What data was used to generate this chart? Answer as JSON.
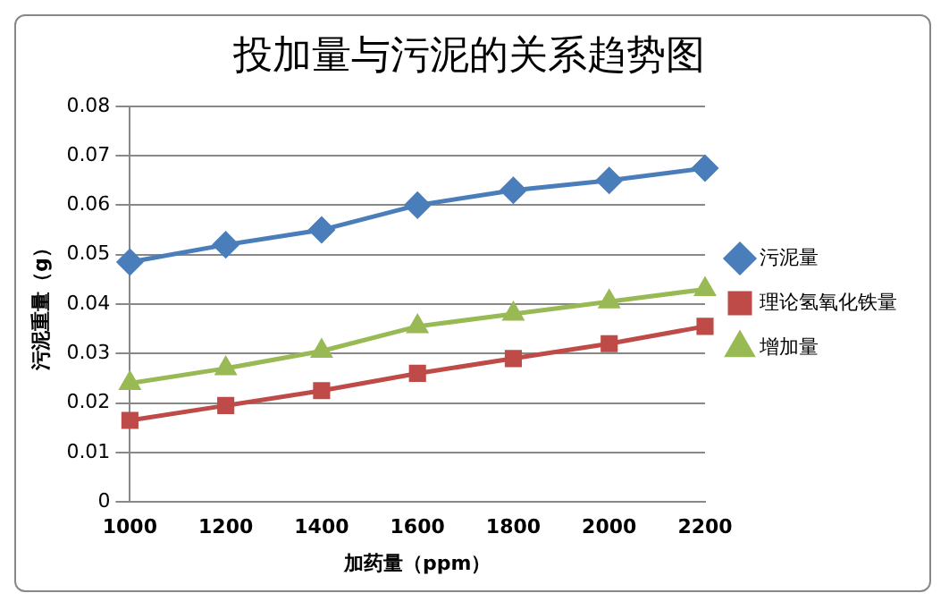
{
  "chart_data": {
    "type": "line",
    "title": "投加量与污泥的关系趋势图",
    "xlabel": "加药量（ppm）",
    "ylabel": "污泥重量（g）",
    "categories": [
      "1000",
      "1200",
      "1400",
      "1600",
      "1800",
      "2000",
      "2200"
    ],
    "series": [
      {
        "name": "污泥量",
        "color": "#4a7ebb",
        "marker": "diamond",
        "values": [
          0.0485,
          0.052,
          0.055,
          0.06,
          0.063,
          0.065,
          0.0675
        ]
      },
      {
        "name": "理论氢氧化铁量",
        "color": "#be4b48",
        "marker": "square",
        "values": [
          0.0165,
          0.0195,
          0.0225,
          0.026,
          0.029,
          0.032,
          0.0355
        ]
      },
      {
        "name": "增加量",
        "color": "#98b954",
        "marker": "triangle",
        "values": [
          0.024,
          0.027,
          0.0305,
          0.0355,
          0.038,
          0.0405,
          0.043
        ]
      }
    ],
    "ylim": [
      0,
      0.08
    ],
    "yticks": [
      0,
      0.01,
      0.02,
      0.03,
      0.04,
      0.05,
      0.06,
      0.07,
      0.08
    ],
    "grid": "y",
    "legend": "right"
  }
}
